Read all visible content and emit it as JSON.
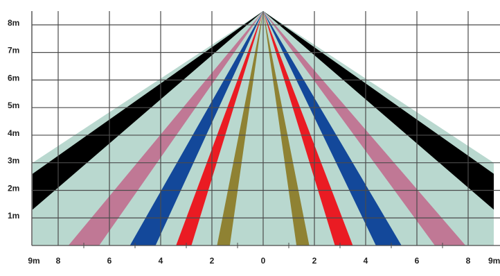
{
  "diagram": {
    "y_axis": {
      "labels": [
        "1m",
        "2m",
        "3m",
        "4m",
        "5m",
        "6m",
        "7m",
        "8m"
      ],
      "min": 0,
      "max": 8.5
    },
    "x_axis": {
      "labels": [
        "9m",
        "8",
        "6",
        "4",
        "2",
        "0",
        "2",
        "4",
        "6",
        "8",
        "9m"
      ],
      "values": [
        -9,
        -8,
        -6,
        -4,
        -2,
        0,
        2,
        4,
        6,
        8,
        9
      ],
      "min": -9,
      "max": 9
    },
    "coverage_boundary": [
      [
        -9,
        3.0
      ],
      [
        0,
        8.5
      ],
      [
        9,
        3.0
      ]
    ],
    "source_point": [
      0,
      8.5
    ],
    "colors": {
      "coverage": "#b9d8cf",
      "grid": "#4b4b4b",
      "black": "#000000",
      "pink": "#c07895",
      "blue": "#13489a",
      "red": "#ea1b23",
      "olive": "#8f8233"
    },
    "beams": [
      {
        "side": "left",
        "color": "black",
        "end_near": [
          -9,
          1.3
        ],
        "end_far": [
          -9,
          2.6
        ]
      },
      {
        "side": "left",
        "color": "pink",
        "end_near": [
          -7.6,
          0
        ],
        "end_far": [
          -6.4,
          0
        ]
      },
      {
        "side": "left",
        "color": "blue",
        "end_near": [
          -5.2,
          0
        ],
        "end_far": [
          -4.2,
          0
        ]
      },
      {
        "side": "left",
        "color": "red",
        "end_near": [
          -3.4,
          0
        ],
        "end_far": [
          -2.8,
          0
        ]
      },
      {
        "side": "left",
        "color": "olive",
        "end_near": [
          -1.8,
          0
        ],
        "end_far": [
          -1.3,
          0
        ]
      },
      {
        "side": "right",
        "color": "olive",
        "end_near": [
          1.3,
          0
        ],
        "end_far": [
          1.8,
          0
        ]
      },
      {
        "side": "right",
        "color": "red",
        "end_near": [
          2.8,
          0
        ],
        "end_far": [
          3.5,
          0
        ]
      },
      {
        "side": "right",
        "color": "blue",
        "end_near": [
          4.4,
          0
        ],
        "end_far": [
          5.4,
          0
        ]
      },
      {
        "side": "right",
        "color": "pink",
        "end_near": [
          6.7,
          0
        ],
        "end_far": [
          7.9,
          0
        ]
      },
      {
        "side": "right",
        "color": "black",
        "end_near": [
          9,
          2.6
        ],
        "end_far": [
          9,
          1.3
        ]
      }
    ]
  }
}
